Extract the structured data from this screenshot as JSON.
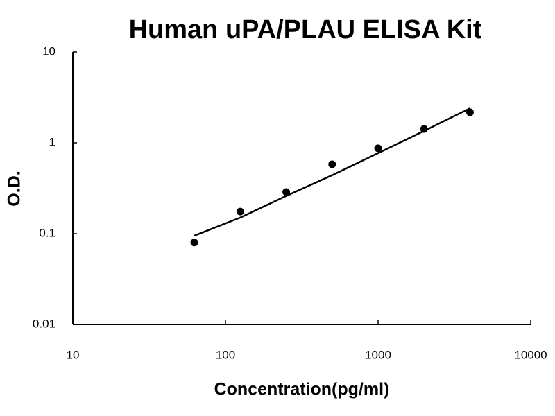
{
  "chart_data": {
    "type": "scatter",
    "title": "Human uPA/PLAU ELISA Kit",
    "x_label": "Concentration(pg/ml)",
    "y_label": "O.D.",
    "x": [
      62.5,
      125,
      250,
      500,
      1000,
      2000,
      4000
    ],
    "series": [
      {
        "mode": "markers",
        "color": "#000000",
        "values": [
          0.08,
          0.175,
          0.287,
          0.58,
          0.87,
          1.42,
          2.17
        ]
      },
      {
        "mode": "line",
        "color": "#000000",
        "values": [
          0.095,
          0.15,
          0.26,
          0.44,
          0.77,
          1.35,
          2.4
        ]
      }
    ],
    "xlim": [
      10,
      10000
    ],
    "xticks": [
      10,
      100,
      1000,
      10000
    ],
    "ylim": [
      0.01,
      10
    ],
    "yticks": [
      0.01,
      0.1,
      1,
      10
    ],
    "log_x": true,
    "log_y": true,
    "grid": false
  }
}
